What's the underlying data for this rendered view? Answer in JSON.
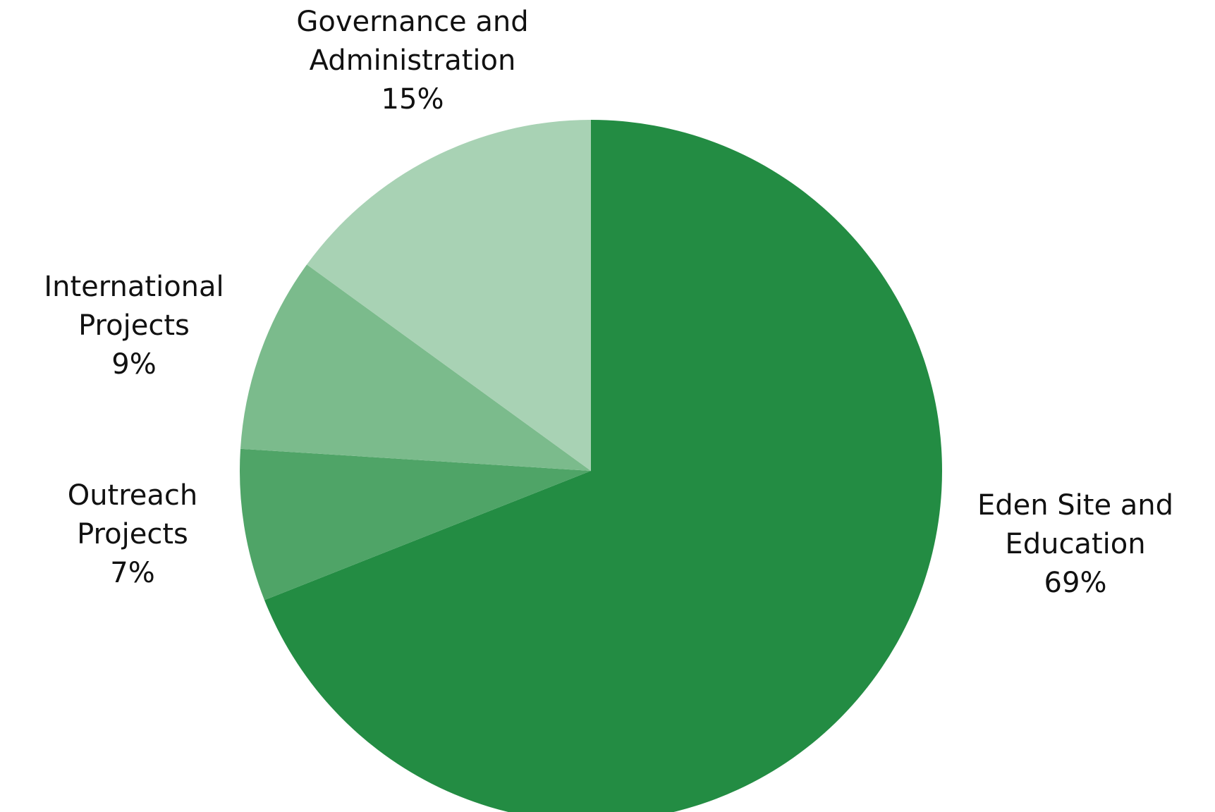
{
  "chart_data": {
    "type": "pie",
    "start": "top",
    "direction": "clockwise",
    "slices": [
      {
        "label_lines": [
          "Eden Site and",
          "Education"
        ],
        "percent_label": "69%",
        "value": 69,
        "color": "#238C43"
      },
      {
        "label_lines": [
          "Outreach",
          "Projects"
        ],
        "percent_label": "7%",
        "value": 7,
        "color": "#4FA467"
      },
      {
        "label_lines": [
          "International",
          "Projects"
        ],
        "percent_label": "9%",
        "value": 9,
        "color": "#7BBB8C"
      },
      {
        "label_lines": [
          "Governance and",
          "Administration"
        ],
        "percent_label": "15%",
        "value": 15,
        "color": "#A8D2B4"
      }
    ]
  }
}
